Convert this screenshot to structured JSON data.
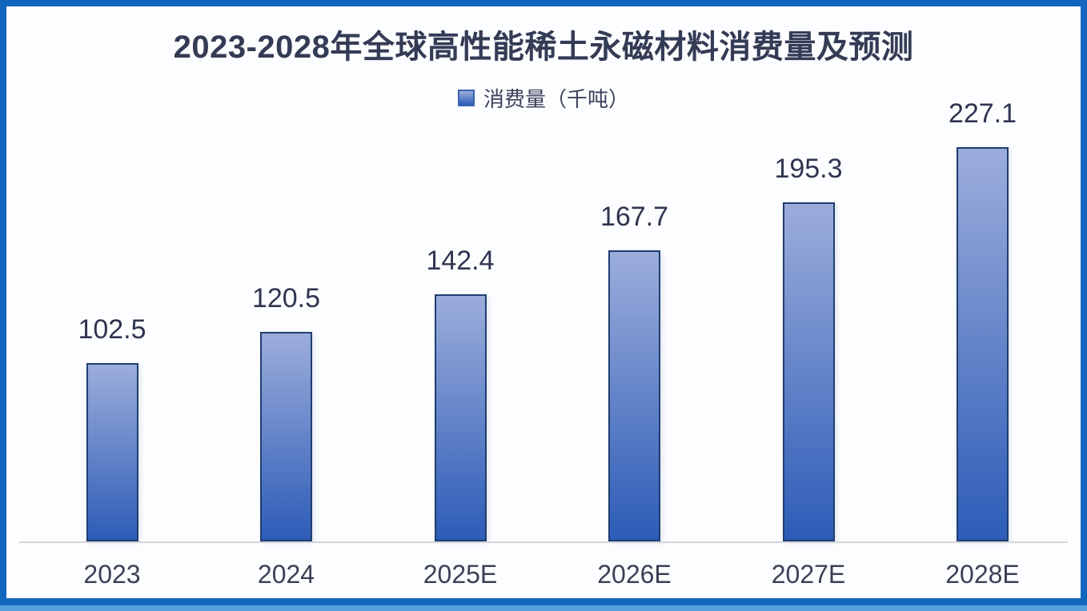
{
  "chart_data": {
    "type": "bar",
    "title": "2023-2028年全球高性能稀土永磁材料消费量及预测",
    "legend": "消费量（千吨）",
    "legend_position": "top-center",
    "categories": [
      "2023",
      "2024",
      "2025E",
      "2026E",
      "2027E",
      "2028E"
    ],
    "series": [
      {
        "name": "消费量（千吨）",
        "values": [
          102.5,
          120.5,
          142.4,
          167.7,
          195.3,
          227.1
        ]
      }
    ],
    "unit": "千吨",
    "ylim": [
      0,
      240
    ],
    "grid": false,
    "data_labels": true,
    "value_decimals": 1
  },
  "colors": {
    "frame_border": "#1366BD",
    "frame_bottom_highlight": "#54A0DC",
    "background": "#FCFDFF",
    "bar_fill_top": "#9CADDB",
    "bar_fill_bottom": "#2D5CB7",
    "bar_border": "#1F3E6F",
    "title_text": "#343B55",
    "legend_text": "#3C415C",
    "value_label_text": "#2F3550",
    "axis_label_text": "#3A4156",
    "axis_line": "#D3D4D8"
  }
}
